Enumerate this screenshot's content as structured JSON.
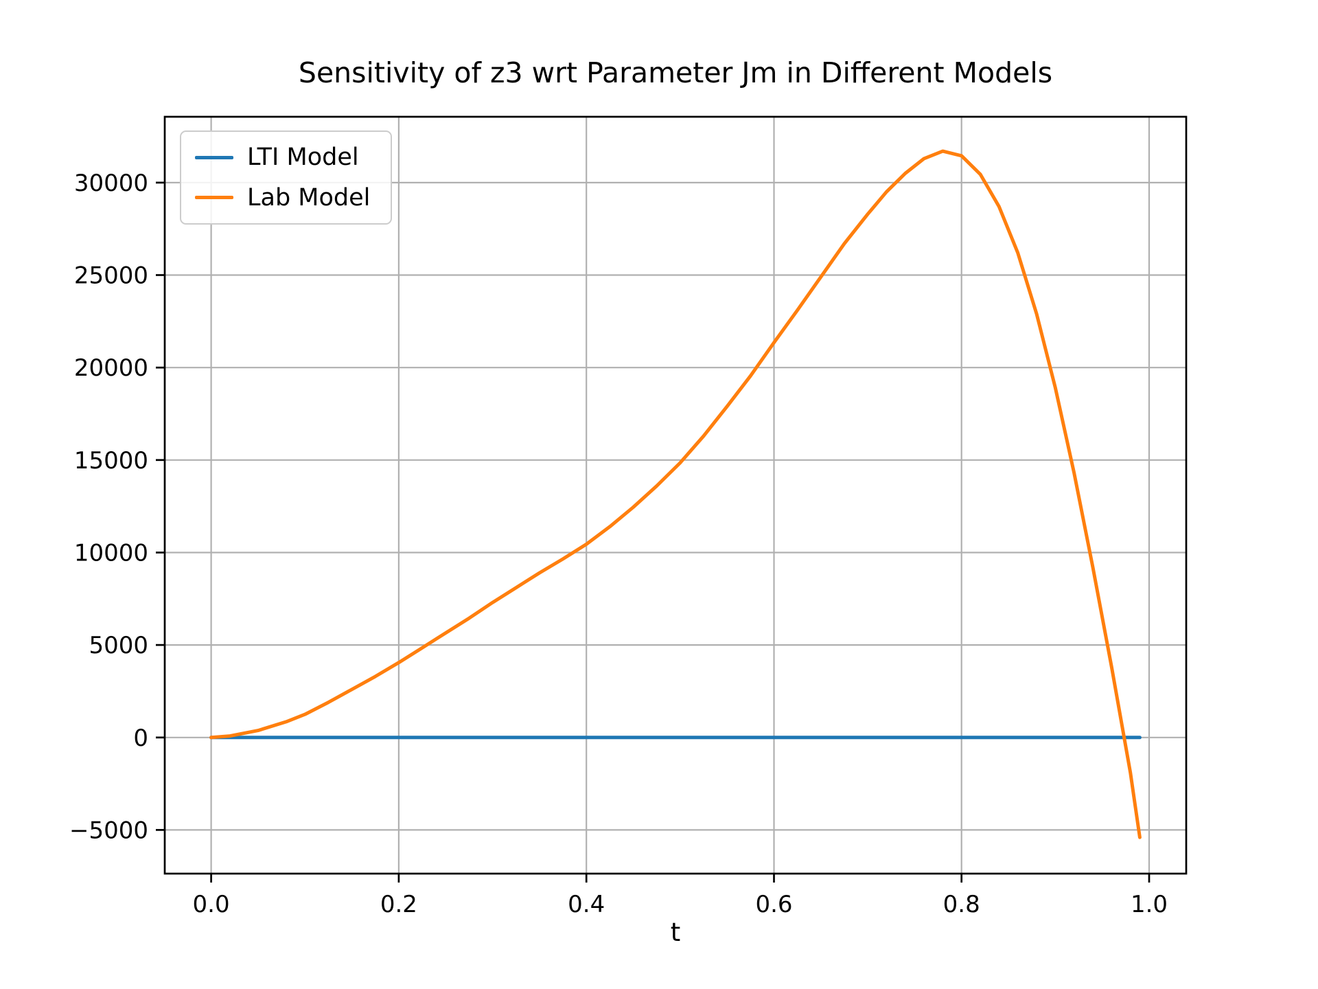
{
  "chart_data": {
    "type": "line",
    "title": "Sensitivity of z3 wrt Parameter Jm in Different Models",
    "xlabel": "t",
    "ylabel": "",
    "grid": true,
    "legend_position": "upper left",
    "xlim": [
      -0.0495,
      1.0395
    ],
    "ylim": [
      -7360,
      33560
    ],
    "xticks": [
      0.0,
      0.2,
      0.4,
      0.6,
      0.8,
      1.0
    ],
    "xtick_labels": [
      "0.0",
      "0.2",
      "0.4",
      "0.6",
      "0.8",
      "1.0"
    ],
    "yticks": [
      -5000,
      0,
      5000,
      10000,
      15000,
      20000,
      25000,
      30000
    ],
    "ytick_labels": [
      "−5000",
      "0",
      "5000",
      "10000",
      "15000",
      "20000",
      "25000",
      "30000"
    ],
    "colors": {
      "grid": "#b0b0b0",
      "spine": "#000000",
      "background": "#ffffff",
      "legend_border": "#cccccc"
    },
    "series": [
      {
        "name": "LTI Model",
        "color": "#1f77b4",
        "x": [
          0.0,
          0.99
        ],
        "y": [
          0,
          0
        ]
      },
      {
        "name": "Lab Model",
        "color": "#ff7f0e",
        "x": [
          0.0,
          0.02,
          0.05,
          0.08,
          0.1,
          0.125,
          0.15,
          0.175,
          0.2,
          0.225,
          0.25,
          0.275,
          0.3,
          0.325,
          0.35,
          0.375,
          0.4,
          0.425,
          0.45,
          0.475,
          0.5,
          0.525,
          0.55,
          0.575,
          0.6,
          0.625,
          0.65,
          0.675,
          0.7,
          0.72,
          0.74,
          0.76,
          0.78,
          0.8,
          0.82,
          0.84,
          0.86,
          0.88,
          0.9,
          0.92,
          0.94,
          0.96,
          0.98,
          0.99
        ],
        "y": [
          0,
          80,
          380,
          850,
          1250,
          1900,
          2600,
          3300,
          4050,
          4850,
          5650,
          6450,
          7300,
          8100,
          8900,
          9650,
          10450,
          11400,
          12450,
          13600,
          14850,
          16300,
          17900,
          19550,
          21350,
          23100,
          24900,
          26700,
          28300,
          29500,
          30500,
          31300,
          31700,
          31450,
          30450,
          28700,
          26200,
          22900,
          18900,
          14300,
          9200,
          3800,
          -1900,
          -5400
        ]
      }
    ]
  }
}
